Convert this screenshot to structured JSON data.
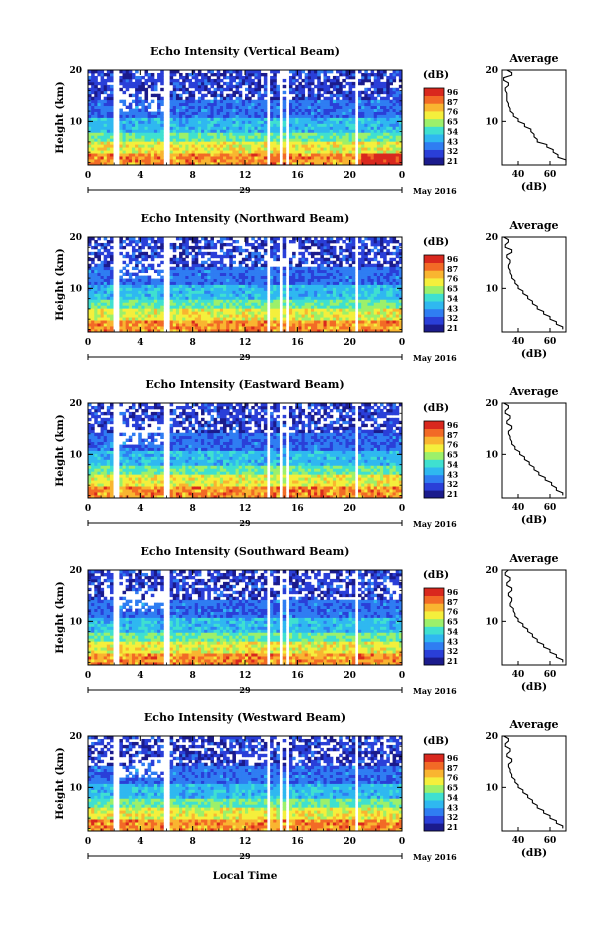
{
  "xlabel": "Local Time",
  "date_label": "May 2016",
  "colorbar": {
    "unit": "(dB)",
    "ticks": [
      96,
      87,
      76,
      65,
      54,
      43,
      32,
      21
    ],
    "colors": [
      "#1b1b8c",
      "#2a3fd8",
      "#2f7df2",
      "#2fb8f0",
      "#3fe0d0",
      "#9cf06a",
      "#f4ef3c",
      "#f9b530",
      "#f26a26",
      "#d9281e"
    ]
  },
  "chart_data": [
    {
      "type": "heatmap",
      "title": "Echo Intensity (Vertical Beam)",
      "ylabel": "Height (km)",
      "x_ticks": [
        "0",
        "4",
        "8",
        "12",
        "16",
        "20",
        "0"
      ],
      "xlim": [
        0,
        24
      ],
      "y_ticks": [
        "10",
        "20"
      ],
      "ylim": [
        1.5,
        20
      ],
      "day_label": "29",
      "colorbar_ticks": [
        "96",
        "87",
        "76",
        "65",
        "54",
        "43",
        "32",
        "21"
      ],
      "clim": [
        21,
        96
      ],
      "data_gaps_hours": [
        [
          2.0,
          2.5
        ],
        [
          5.8,
          6.2
        ],
        [
          13.6,
          14.0
        ],
        [
          14.6,
          14.9
        ],
        [
          15.1,
          15.4
        ],
        [
          20.4,
          20.7
        ]
      ],
      "profile": {
        "title": "Average",
        "xlabel": "(dB)",
        "x_ticks": [
          "40",
          "60"
        ],
        "xlim": [
          30,
          70
        ],
        "y_ticks": [
          "10",
          "20"
        ],
        "height_km": [
          2,
          3,
          4,
          5,
          6,
          7,
          8,
          9,
          10,
          11,
          12,
          13,
          14,
          15,
          16,
          17,
          18,
          19,
          20
        ],
        "avg_db": [
          70,
          65,
          62,
          58,
          52,
          50,
          48,
          44,
          40,
          37,
          35,
          34,
          33,
          33,
          32,
          34,
          31,
          36,
          33
        ]
      }
    },
    {
      "type": "heatmap",
      "title": "Echo Intensity (Northward Beam)",
      "ylabel": "Height (km)",
      "x_ticks": [
        "0",
        "4",
        "8",
        "12",
        "16",
        "20",
        "0"
      ],
      "xlim": [
        0,
        24
      ],
      "y_ticks": [
        "10",
        "20"
      ],
      "ylim": [
        1.5,
        20
      ],
      "day_label": "29",
      "colorbar_ticks": [
        "96",
        "87",
        "76",
        "65",
        "54",
        "43",
        "32",
        "21"
      ],
      "clim": [
        21,
        96
      ],
      "data_gaps_hours": [
        [
          2.0,
          2.5
        ],
        [
          5.8,
          6.2
        ],
        [
          13.6,
          14.0
        ],
        [
          14.6,
          14.9
        ],
        [
          15.1,
          15.4
        ],
        [
          20.4,
          20.7
        ]
      ],
      "profile": {
        "title": "Average",
        "xlabel": "(dB)",
        "x_ticks": [
          "40",
          "60"
        ],
        "xlim": [
          30,
          70
        ],
        "y_ticks": [
          "10",
          "20"
        ],
        "height_km": [
          2,
          3,
          4,
          5,
          6,
          7,
          8,
          9,
          10,
          11,
          12,
          13,
          14,
          15,
          16,
          17,
          18,
          19,
          20
        ],
        "avg_db": [
          68,
          64,
          60,
          56,
          52,
          49,
          46,
          43,
          40,
          38,
          36,
          35,
          34,
          35,
          33,
          36,
          32,
          34,
          31
        ]
      }
    },
    {
      "type": "heatmap",
      "title": "Echo Intensity (Eastward Beam)",
      "ylabel": "Height (km)",
      "x_ticks": [
        "0",
        "4",
        "8",
        "12",
        "16",
        "20",
        "0"
      ],
      "xlim": [
        0,
        24
      ],
      "y_ticks": [
        "10",
        "20"
      ],
      "ylim": [
        1.5,
        20
      ],
      "day_label": "29",
      "colorbar_ticks": [
        "96",
        "87",
        "76",
        "65",
        "54",
        "43",
        "32",
        "21"
      ],
      "clim": [
        21,
        96
      ],
      "data_gaps_hours": [
        [
          2.0,
          2.5
        ],
        [
          5.8,
          6.2
        ],
        [
          13.6,
          14.0
        ],
        [
          14.6,
          14.9
        ],
        [
          15.1,
          15.4
        ],
        [
          20.4,
          20.7
        ]
      ],
      "profile": {
        "title": "Average",
        "xlabel": "(dB)",
        "x_ticks": [
          "40",
          "60"
        ],
        "xlim": [
          30,
          70
        ],
        "y_ticks": [
          "10",
          "20"
        ],
        "height_km": [
          2,
          3,
          4,
          5,
          6,
          7,
          8,
          9,
          10,
          11,
          12,
          13,
          14,
          15,
          16,
          17,
          18,
          19,
          20
        ],
        "avg_db": [
          68,
          64,
          61,
          57,
          53,
          50,
          47,
          44,
          41,
          38,
          36,
          35,
          34,
          36,
          33,
          35,
          32,
          34,
          31
        ]
      }
    },
    {
      "type": "heatmap",
      "title": "Echo Intensity (Southward Beam)",
      "ylabel": "Height (km)",
      "x_ticks": [
        "0",
        "4",
        "8",
        "12",
        "16",
        "20",
        "0"
      ],
      "xlim": [
        0,
        24
      ],
      "y_ticks": [
        "10",
        "20"
      ],
      "ylim": [
        1.5,
        20
      ],
      "day_label": "29",
      "colorbar_ticks": [
        "96",
        "87",
        "76",
        "65",
        "54",
        "43",
        "32",
        "21"
      ],
      "clim": [
        21,
        96
      ],
      "data_gaps_hours": [
        [
          2.0,
          2.5
        ],
        [
          5.8,
          6.2
        ],
        [
          13.6,
          14.0
        ],
        [
          14.6,
          14.9
        ],
        [
          15.1,
          15.4
        ],
        [
          20.4,
          20.7
        ]
      ],
      "profile": {
        "title": "Average",
        "xlabel": "(dB)",
        "x_ticks": [
          "40",
          "60"
        ],
        "xlim": [
          30,
          70
        ],
        "y_ticks": [
          "10",
          "20"
        ],
        "height_km": [
          2,
          3,
          4,
          5,
          6,
          7,
          8,
          9,
          10,
          11,
          12,
          13,
          14,
          15,
          16,
          17,
          18,
          19,
          20
        ],
        "avg_db": [
          68,
          64,
          60,
          56,
          52,
          49,
          46,
          43,
          40,
          38,
          37,
          35,
          36,
          34,
          36,
          33,
          35,
          32,
          34
        ]
      }
    },
    {
      "type": "heatmap",
      "title": "Echo Intensity (Westward Beam)",
      "ylabel": "Height (km)",
      "x_ticks": [
        "0",
        "4",
        "8",
        "12",
        "16",
        "20",
        "0"
      ],
      "xlim": [
        0,
        24
      ],
      "y_ticks": [
        "10",
        "20"
      ],
      "ylim": [
        1.5,
        20
      ],
      "day_label": "29",
      "colorbar_ticks": [
        "96",
        "87",
        "76",
        "65",
        "54",
        "43",
        "32",
        "21"
      ],
      "clim": [
        21,
        96
      ],
      "data_gaps_hours": [
        [
          2.0,
          2.5
        ],
        [
          5.8,
          6.2
        ],
        [
          13.6,
          14.0
        ],
        [
          14.6,
          14.9
        ],
        [
          15.1,
          15.4
        ],
        [
          20.4,
          20.7
        ]
      ],
      "profile": {
        "title": "Average",
        "xlabel": "(dB)",
        "x_ticks": [
          "40",
          "60"
        ],
        "xlim": [
          30,
          70
        ],
        "y_ticks": [
          "10",
          "20"
        ],
        "height_km": [
          2,
          3,
          4,
          5,
          6,
          7,
          8,
          9,
          10,
          11,
          12,
          13,
          14,
          15,
          16,
          17,
          18,
          19,
          20
        ],
        "avg_db": [
          68,
          64,
          60,
          56,
          52,
          49,
          46,
          43,
          40,
          38,
          36,
          35,
          34,
          36,
          33,
          35,
          32,
          34,
          31
        ]
      }
    }
  ]
}
